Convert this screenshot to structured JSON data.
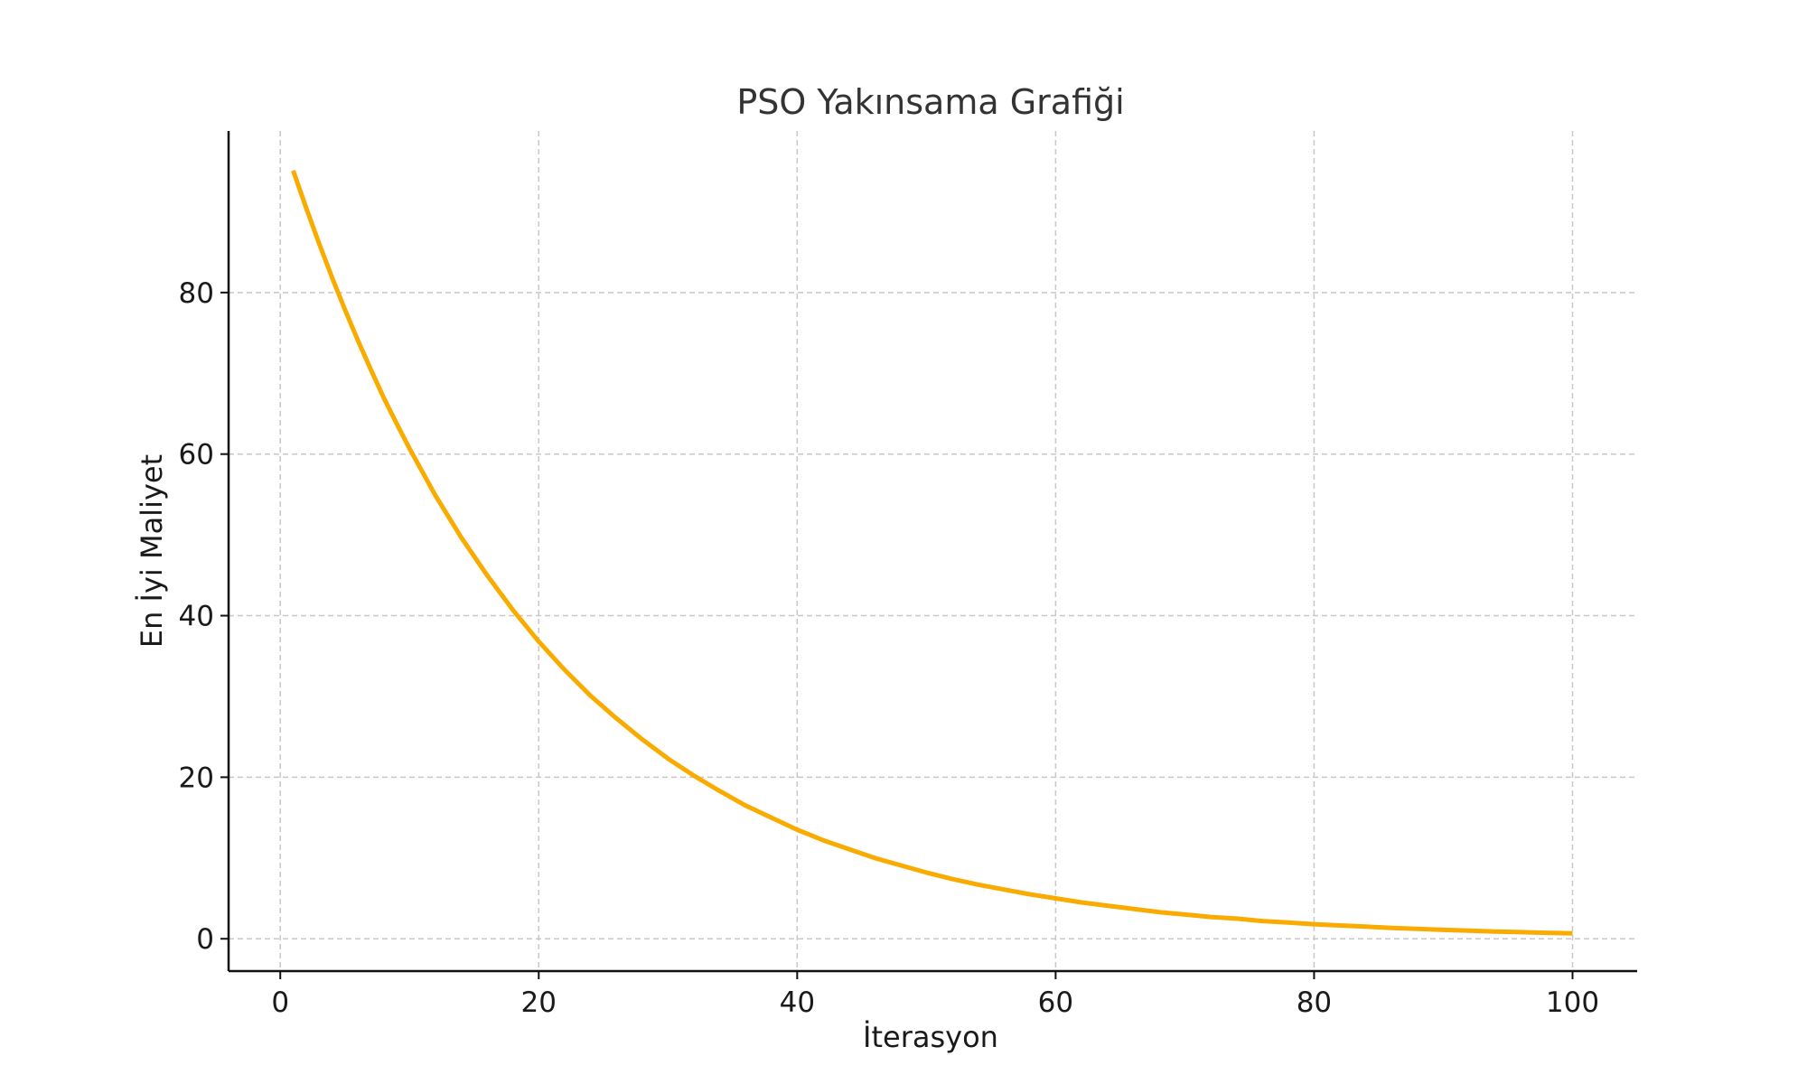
{
  "chart_data": {
    "type": "line",
    "title": "PSO Yakınsama Grafiği",
    "xlabel": "İterasyon",
    "ylabel": "En İyi Maliyet",
    "xlim": [
      -4,
      105
    ],
    "ylim": [
      -4,
      100
    ],
    "xticks": [
      0,
      20,
      40,
      60,
      80,
      100
    ],
    "yticks": [
      0,
      20,
      40,
      60,
      80
    ],
    "grid": true,
    "series": [
      {
        "color": "#f9ab00",
        "x": [
          1,
          2,
          3,
          4,
          5,
          6,
          7,
          8,
          9,
          10,
          12,
          14,
          16,
          18,
          20,
          22,
          24,
          26,
          28,
          30,
          32,
          34,
          36,
          38,
          40,
          42,
          44,
          46,
          48,
          50,
          52,
          54,
          56,
          58,
          60,
          62,
          64,
          66,
          68,
          70,
          72,
          74,
          76,
          78,
          80,
          82,
          84,
          86,
          88,
          90,
          92,
          94,
          96,
          98,
          100
        ],
        "y": [
          95.1,
          90.5,
          86.1,
          81.9,
          77.9,
          74.1,
          70.5,
          67.0,
          63.8,
          60.7,
          54.9,
          49.7,
          45.0,
          40.7,
          36.8,
          33.3,
          30.1,
          27.3,
          24.7,
          22.3,
          20.2,
          18.3,
          16.5,
          15.0,
          13.5,
          12.2,
          11.1,
          10.0,
          9.1,
          8.2,
          7.4,
          6.7,
          6.1,
          5.5,
          5.0,
          4.5,
          4.1,
          3.7,
          3.3,
          3.0,
          2.7,
          2.5,
          2.2,
          2.0,
          1.8,
          1.65,
          1.5,
          1.35,
          1.22,
          1.1,
          1.0,
          0.9,
          0.82,
          0.74,
          0.67
        ]
      }
    ]
  }
}
